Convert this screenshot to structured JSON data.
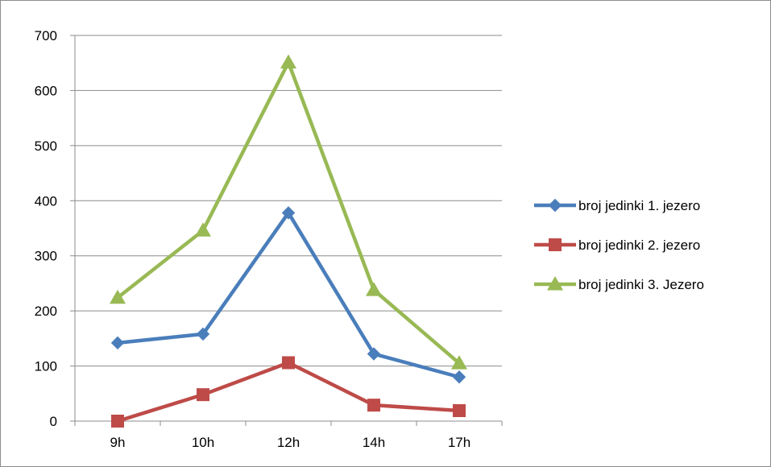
{
  "chart_data": {
    "type": "line",
    "categories": [
      "9h",
      "10h",
      "12h",
      "14h",
      "17h"
    ],
    "ylim": [
      0,
      700
    ],
    "yticks": [
      0,
      100,
      200,
      300,
      400,
      500,
      600,
      700
    ],
    "grid": true,
    "legend_position": "right",
    "series": [
      {
        "name": "broj jedinki 1. jezero",
        "color": "#4a7ebb",
        "marker": "diamond",
        "values": [
          142,
          158,
          378,
          122,
          80
        ]
      },
      {
        "name": "broj jedinki 2. jezero",
        "color": "#be4b48",
        "marker": "square",
        "values": [
          0,
          48,
          106,
          29,
          19
        ]
      },
      {
        "name": "broj jedinki 3. Jezero",
        "color": "#98b954",
        "marker": "triangle",
        "values": [
          224,
          346,
          651,
          238,
          105
        ]
      }
    ]
  }
}
